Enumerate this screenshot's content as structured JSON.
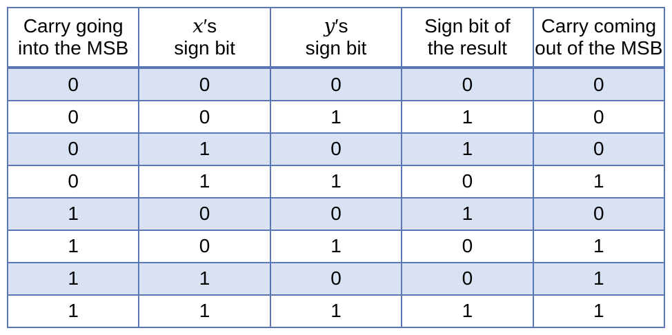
{
  "columns": [
    {
      "line1": "Carry going",
      "line2": "into the MSB"
    },
    {
      "var": "x",
      "suffix": "′s",
      "line2": "sign bit"
    },
    {
      "var": "y",
      "suffix": "′s",
      "line2": "sign bit"
    },
    {
      "line1": "Sign bit of",
      "line2": "the result"
    },
    {
      "line1": "Carry coming",
      "line2": "out of the MSB"
    }
  ],
  "rows": [
    [
      "0",
      "0",
      "0",
      "0",
      "0"
    ],
    [
      "0",
      "0",
      "1",
      "1",
      "0"
    ],
    [
      "0",
      "1",
      "0",
      "1",
      "0"
    ],
    [
      "0",
      "1",
      "1",
      "0",
      "1"
    ],
    [
      "1",
      "0",
      "0",
      "1",
      "0"
    ],
    [
      "1",
      "0",
      "1",
      "0",
      "1"
    ],
    [
      "1",
      "1",
      "0",
      "0",
      "1"
    ],
    [
      "1",
      "1",
      "1",
      "1",
      "1"
    ]
  ],
  "colors": {
    "border": "#5b76b4",
    "shaded_row": "#d9e2f3"
  }
}
